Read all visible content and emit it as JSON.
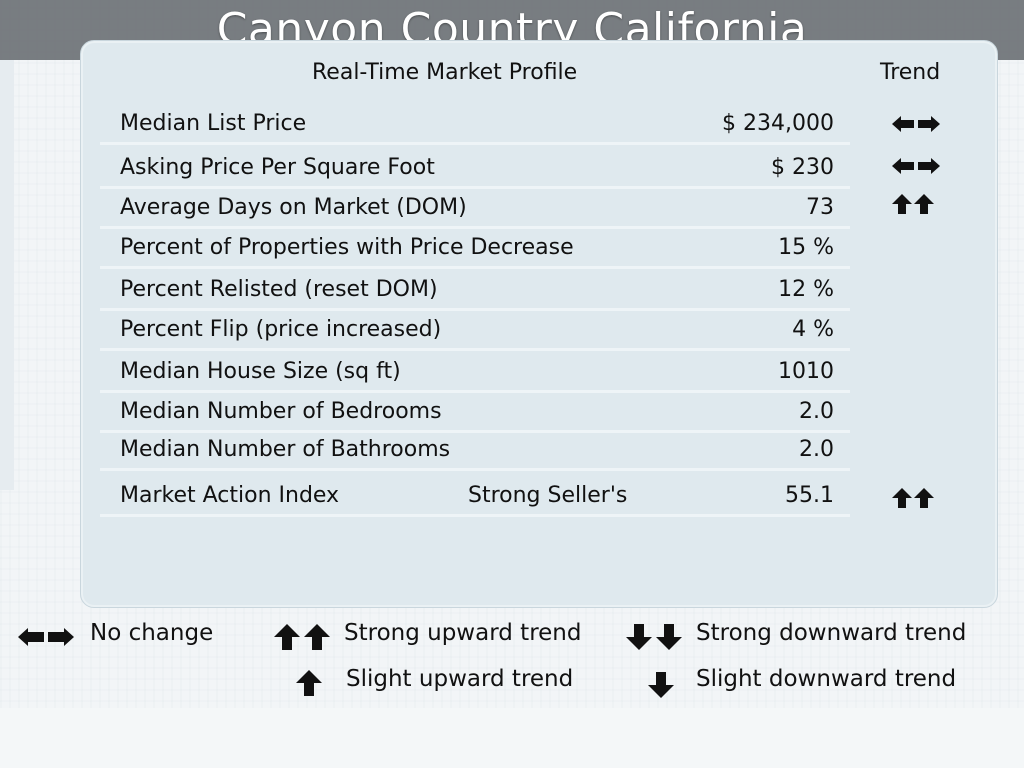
{
  "slide": {
    "title": "Canyon Country California"
  },
  "panel": {
    "header": "Real-Time Market Profile",
    "trend_header": "Trend",
    "rows": [
      {
        "label": "Median List Price",
        "value": "$ 234,000",
        "trend": "no-change"
      },
      {
        "label": "Asking Price Per Square Foot",
        "value": "$ 230",
        "trend": "no-change"
      },
      {
        "label": "Average Days on Market (DOM)",
        "value": "73",
        "trend": "strong-upward"
      },
      {
        "label": "Percent of Properties with Price Decrease",
        "value": "15 %",
        "trend": ""
      },
      {
        "label": "Percent Relisted (reset DOM)",
        "value": "12 %",
        "trend": ""
      },
      {
        "label": "Percent Flip (price increased)",
        "value": "4 %",
        "trend": ""
      },
      {
        "label": "Median House Size (sq ft)",
        "value": "1010",
        "trend": ""
      },
      {
        "label": "Median Number of Bedrooms",
        "value": "2.0",
        "trend": ""
      },
      {
        "label": "Median Number of Bathrooms",
        "value": "2.0",
        "trend": ""
      },
      {
        "label": "Market Action Index",
        "mid": "Strong Seller's",
        "value": "55.1",
        "trend": "strong-upward"
      }
    ]
  },
  "legend": {
    "no_change": "No change",
    "strong_up": "Strong upward trend",
    "strong_down": "Strong downward trend",
    "slight_up": "Slight upward trend",
    "slight_down": "Slight downward trend"
  }
}
